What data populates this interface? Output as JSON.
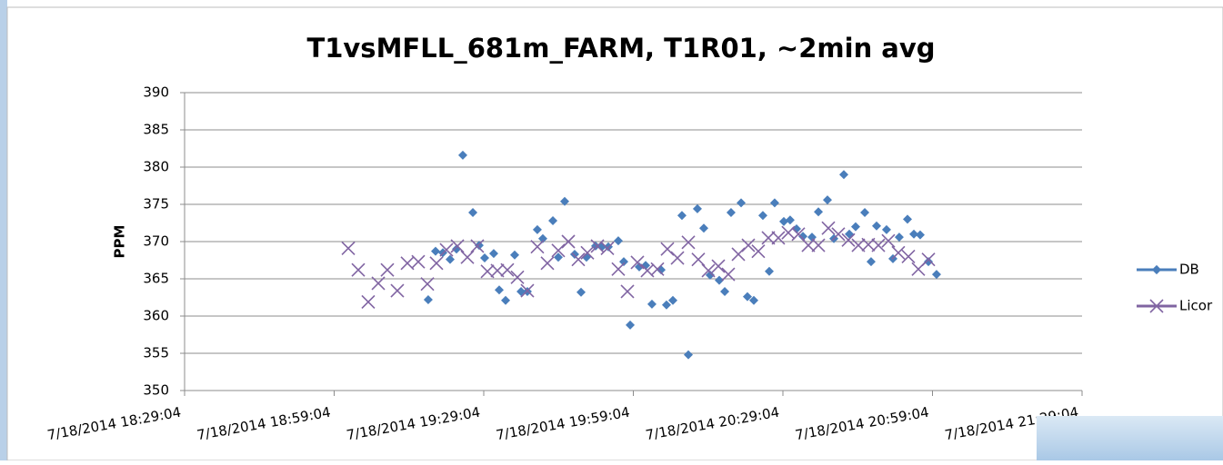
{
  "chart_data": {
    "type": "scatter",
    "title": "T1vsMFLL_681m_FARM, T1R01, ~2min avg",
    "y_label": "PPM",
    "xlim": [
      "7/18/2014 18:29:04",
      "7/18/2014 21:29:04"
    ],
    "xticks": [
      "7/18/2014 18:29:04",
      "7/18/2014 18:59:04",
      "7/18/2014 19:29:04",
      "7/18/2014 19:59:04",
      "7/18/2014 20:29:04",
      "7/18/2014 20:59:04",
      "7/18/2014 21:29:04"
    ],
    "ylim": [
      350,
      390
    ],
    "yticks": [
      350,
      355,
      360,
      365,
      370,
      375,
      380,
      385,
      390
    ],
    "grid": true,
    "legend": "right",
    "series": [
      {
        "name": "DB",
        "color": "#4a7ebb",
        "marker": "diamond",
        "x": [
          "7/18/2014 19:17:56",
          "7/18/2014 19:19:24",
          "7/18/2014 19:20:52",
          "7/18/2014 19:22:19",
          "7/18/2014 19:23:36",
          "7/18/2014 19:24:52",
          "7/18/2014 19:26:53",
          "7/18/2014 19:28:09",
          "7/18/2014 19:29:15",
          "7/18/2014 19:31:04",
          "7/18/2014 19:32:10",
          "7/18/2014 19:33:27",
          "7/18/2014 19:35:16",
          "7/18/2014 19:36:33",
          "7/18/2014 19:37:49",
          "7/18/2014 19:39:49",
          "7/18/2014 19:40:55",
          "7/18/2014 19:42:56",
          "7/18/2014 19:44:01",
          "7/18/2014 19:45:18",
          "7/18/2014 19:47:18",
          "7/18/2014 19:48:35",
          "7/18/2014 19:49:40",
          "7/18/2014 19:51:30",
          "7/18/2014 19:52:46",
          "7/18/2014 19:54:03",
          "7/18/2014 19:56:03",
          "7/18/2014 19:57:09",
          "7/18/2014 19:58:26",
          "7/18/2014 20:00:15",
          "7/18/2014 20:01:32",
          "7/18/2014 20:02:48",
          "7/18/2014 20:04:38",
          "7/18/2014 20:05:43",
          "7/18/2014 20:07:00",
          "7/18/2014 20:08:49",
          "7/18/2014 20:10:06",
          "7/18/2014 20:11:55",
          "7/18/2014 20:13:12",
          "7/18/2014 20:14:28",
          "7/18/2014 20:16:18",
          "7/18/2014 20:17:24",
          "7/18/2014 20:18:40",
          "7/18/2014 20:20:41",
          "7/18/2014 20:21:57",
          "7/18/2014 20:23:14",
          "7/18/2014 20:25:03",
          "7/18/2014 20:26:20",
          "7/18/2014 20:27:25",
          "7/18/2014 20:29:15",
          "7/18/2014 20:30:31",
          "7/18/2014 20:31:48",
          "7/18/2014 20:33:05",
          "7/18/2014 20:34:54",
          "7/18/2014 20:36:11",
          "7/18/2014 20:38:00",
          "7/18/2014 20:39:17",
          "7/18/2014 20:41:17",
          "7/18/2014 20:42:23",
          "7/18/2014 20:43:39",
          "7/18/2014 20:45:29",
          "7/18/2014 20:46:45",
          "7/18/2014 20:47:51",
          "7/18/2014 20:49:51",
          "7/18/2014 20:51:08",
          "7/18/2014 20:52:24",
          "7/18/2014 20:54:03",
          "7/18/2014 20:55:20",
          "7/18/2014 20:56:36",
          "7/18/2014 20:58:15",
          "7/18/2014 20:59:53"
        ],
        "values": [
          362.2,
          368.7,
          368.5,
          367.6,
          369.0,
          381.6,
          373.9,
          369.5,
          367.8,
          368.4,
          363.5,
          362.1,
          368.2,
          363.3,
          363.3,
          371.6,
          370.4,
          372.8,
          367.9,
          375.4,
          368.3,
          363.2,
          367.9,
          369.4,
          369.3,
          369.3,
          370.1,
          367.3,
          358.8,
          366.6,
          366.8,
          361.6,
          366.2,
          361.5,
          362.1,
          373.5,
          354.8,
          374.4,
          371.8,
          365.5,
          364.8,
          363.3,
          373.9,
          375.2,
          362.6,
          362.1,
          373.5,
          366.0,
          375.2,
          372.7,
          372.9,
          371.7,
          370.7,
          370.6,
          374.0,
          375.6,
          370.4,
          379.0,
          371.0,
          372.0,
          373.9,
          367.3,
          372.1,
          371.6,
          367.7,
          370.6,
          373.0,
          371.0,
          370.9,
          367.3,
          365.6
        ]
      },
      {
        "name": "Licor",
        "color": "#8064a2",
        "marker": "x",
        "x": [
          "7/18/2014 19:01:54",
          "7/18/2014 19:03:54",
          "7/18/2014 19:05:54",
          "7/18/2014 19:07:55",
          "7/18/2014 19:09:44",
          "7/18/2014 19:11:44",
          "7/18/2014 19:13:45",
          "7/18/2014 19:15:56",
          "7/18/2014 19:17:46",
          "7/18/2014 19:19:35",
          "7/18/2014 19:21:35",
          "7/18/2014 19:23:47",
          "7/18/2014 19:25:47",
          "7/18/2014 19:27:47",
          "7/18/2014 19:29:48",
          "7/18/2014 19:31:48",
          "7/18/2014 19:33:48",
          "7/18/2014 19:35:49",
          "7/18/2014 19:37:49",
          "7/18/2014 19:39:49",
          "7/18/2014 19:41:50",
          "7/18/2014 19:44:01",
          "7/18/2014 19:46:02",
          "7/18/2014 19:48:02",
          "7/18/2014 19:49:51",
          "7/18/2014 19:51:52",
          "7/18/2014 19:53:52",
          "7/18/2014 19:56:03",
          "7/18/2014 19:57:53",
          "7/18/2014 19:59:53",
          "7/18/2014 20:01:53",
          "7/18/2014 20:03:54",
          "7/18/2014 20:05:54",
          "7/18/2014 20:07:55",
          "7/18/2014 20:10:06",
          "7/18/2014 20:12:06",
          "7/18/2014 20:14:07",
          "7/18/2014 20:16:07",
          "7/18/2014 20:18:07",
          "7/18/2014 20:20:08",
          "7/18/2014 20:22:08",
          "7/18/2014 20:24:08",
          "7/18/2014 20:26:09",
          "7/18/2014 20:28:09",
          "7/18/2014 20:30:09",
          "7/18/2014 20:32:10",
          "7/18/2014 20:34:10",
          "7/18/2014 20:36:11",
          "7/18/2014 20:38:11",
          "7/18/2014 20:40:11",
          "7/18/2014 20:42:12",
          "7/18/2014 20:44:12",
          "7/18/2014 20:46:12",
          "7/18/2014 20:48:13",
          "7/18/2014 20:50:13",
          "7/18/2014 20:52:13",
          "7/18/2014 20:54:14",
          "7/18/2014 20:56:14",
          "7/18/2014 20:58:15"
        ],
        "values": [
          369.1,
          366.2,
          361.9,
          364.4,
          366.2,
          363.4,
          367.1,
          367.3,
          364.3,
          367.1,
          368.9,
          369.4,
          367.9,
          369.4,
          366.0,
          366.1,
          366.2,
          365.2,
          363.4,
          369.3,
          367.1,
          368.8,
          370.0,
          367.6,
          368.5,
          369.4,
          369.1,
          366.3,
          363.3,
          367.2,
          366.1,
          366.3,
          369.0,
          367.8,
          369.9,
          367.6,
          366.1,
          366.7,
          365.6,
          368.3,
          369.5,
          368.7,
          370.5,
          370.5,
          371.2,
          371.0,
          369.5,
          369.5,
          371.8,
          371.0,
          370.2,
          369.5,
          369.6,
          369.5,
          370.1,
          368.5,
          368.0,
          366.3,
          367.6
        ]
      }
    ]
  }
}
